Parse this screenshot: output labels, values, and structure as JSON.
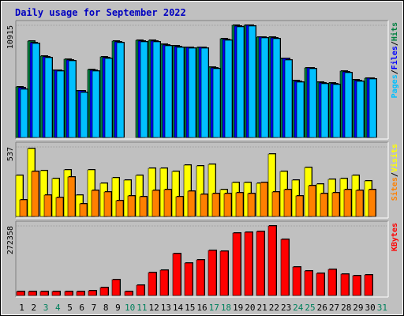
{
  "chart_data": [
    {
      "type": "bar",
      "title": "Daily usage for September 2022",
      "panel": "hits-files-pages",
      "y_max_label": "10915",
      "ylim": [
        0,
        10915
      ],
      "legend": [
        {
          "name": "Pages",
          "color": "#00c0ff"
        },
        {
          "name": "/",
          "color": "#000000"
        },
        {
          "name": "Files",
          "color": "#0000ff"
        },
        {
          "name": "/",
          "color": "#000000"
        },
        {
          "name": "Hits",
          "color": "#008040"
        }
      ],
      "series": [
        {
          "name": "Hits",
          "color": "#008040",
          "values": [
            4900,
            9350,
            7900,
            6550,
            7600,
            4550,
            6600,
            7850,
            9350,
            0,
            9450,
            9450,
            9050,
            8900,
            8800,
            8800,
            6850,
            9600,
            10900,
            10950,
            9800,
            9750,
            7700,
            5500,
            6800,
            5350,
            5300,
            6450,
            5600,
            5800
          ]
        },
        {
          "name": "Files",
          "color": "#0000ff",
          "values": [
            4850,
            9250,
            7850,
            6500,
            7550,
            4500,
            6550,
            7800,
            9300,
            0,
            9400,
            9400,
            9000,
            8850,
            8750,
            8750,
            6800,
            9550,
            10850,
            10950,
            9750,
            9700,
            7650,
            5450,
            6750,
            5300,
            5250,
            6400,
            5550,
            5750
          ]
        },
        {
          "name": "Pages",
          "color": "#00c0ff",
          "values": [
            4700,
            9150,
            7800,
            6450,
            7450,
            4400,
            6450,
            7700,
            9200,
            0,
            9300,
            9300,
            8900,
            8750,
            8650,
            8650,
            6700,
            9450,
            10750,
            10850,
            9650,
            9600,
            7550,
            5350,
            6650,
            5200,
            5150,
            6300,
            5450,
            5650
          ]
        }
      ]
    },
    {
      "type": "bar",
      "panel": "visits-sites",
      "y_max_label": "537",
      "ylim": [
        0,
        537
      ],
      "legend": [
        {
          "name": "Sites",
          "color": "#ff8000"
        },
        {
          "name": "/",
          "color": "#000000"
        },
        {
          "name": "Visits",
          "color": "#ffff00"
        }
      ],
      "series": [
        {
          "name": "Visits",
          "color": "#ffff00",
          "values": [
            320,
            525,
            355,
            290,
            360,
            165,
            360,
            255,
            300,
            280,
            320,
            375,
            370,
            345,
            395,
            390,
            400,
            205,
            265,
            265,
            255,
            480,
            345,
            280,
            380,
            250,
            285,
            290,
            315,
            275
          ]
        },
        {
          "name": "Sites",
          "color": "#ff8000",
          "values": [
            130,
            350,
            165,
            145,
            305,
            95,
            200,
            190,
            125,
            160,
            155,
            200,
            210,
            155,
            195,
            170,
            180,
            180,
            185,
            175,
            260,
            190,
            210,
            160,
            240,
            180,
            185,
            205,
            200,
            210
          ]
        }
      ]
    },
    {
      "type": "bar",
      "panel": "kbytes",
      "y_max_label": "272358",
      "ylim": [
        0,
        272358
      ],
      "legend": [
        {
          "name": "KBytes",
          "color": "#ff0000"
        }
      ],
      "series": [
        {
          "name": "KBytes",
          "color": "#ff0000",
          "values": [
            17000,
            14000,
            14000,
            15000,
            17000,
            14000,
            18000,
            30000,
            62000,
            16000,
            39000,
            90000,
            100000,
            165000,
            128000,
            140000,
            175000,
            172000,
            245000,
            247000,
            250000,
            272358,
            220000,
            110000,
            96000,
            87000,
            102000,
            83000,
            78000,
            82000
          ]
        }
      ]
    }
  ],
  "x_axis": {
    "days": [
      "1",
      "2",
      "3",
      "4",
      "5",
      "6",
      "7",
      "8",
      "9",
      "10",
      "11",
      "12",
      "13",
      "14",
      "15",
      "16",
      "17",
      "18",
      "19",
      "20",
      "21",
      "22",
      "23",
      "24",
      "25",
      "26",
      "27",
      "28",
      "29",
      "30",
      "31"
    ],
    "weekend_days": [
      "3",
      "4",
      "10",
      "11",
      "17",
      "18",
      "24",
      "25",
      "31"
    ],
    "weekday_color": "#000000",
    "weekend_color": "#00805c"
  }
}
